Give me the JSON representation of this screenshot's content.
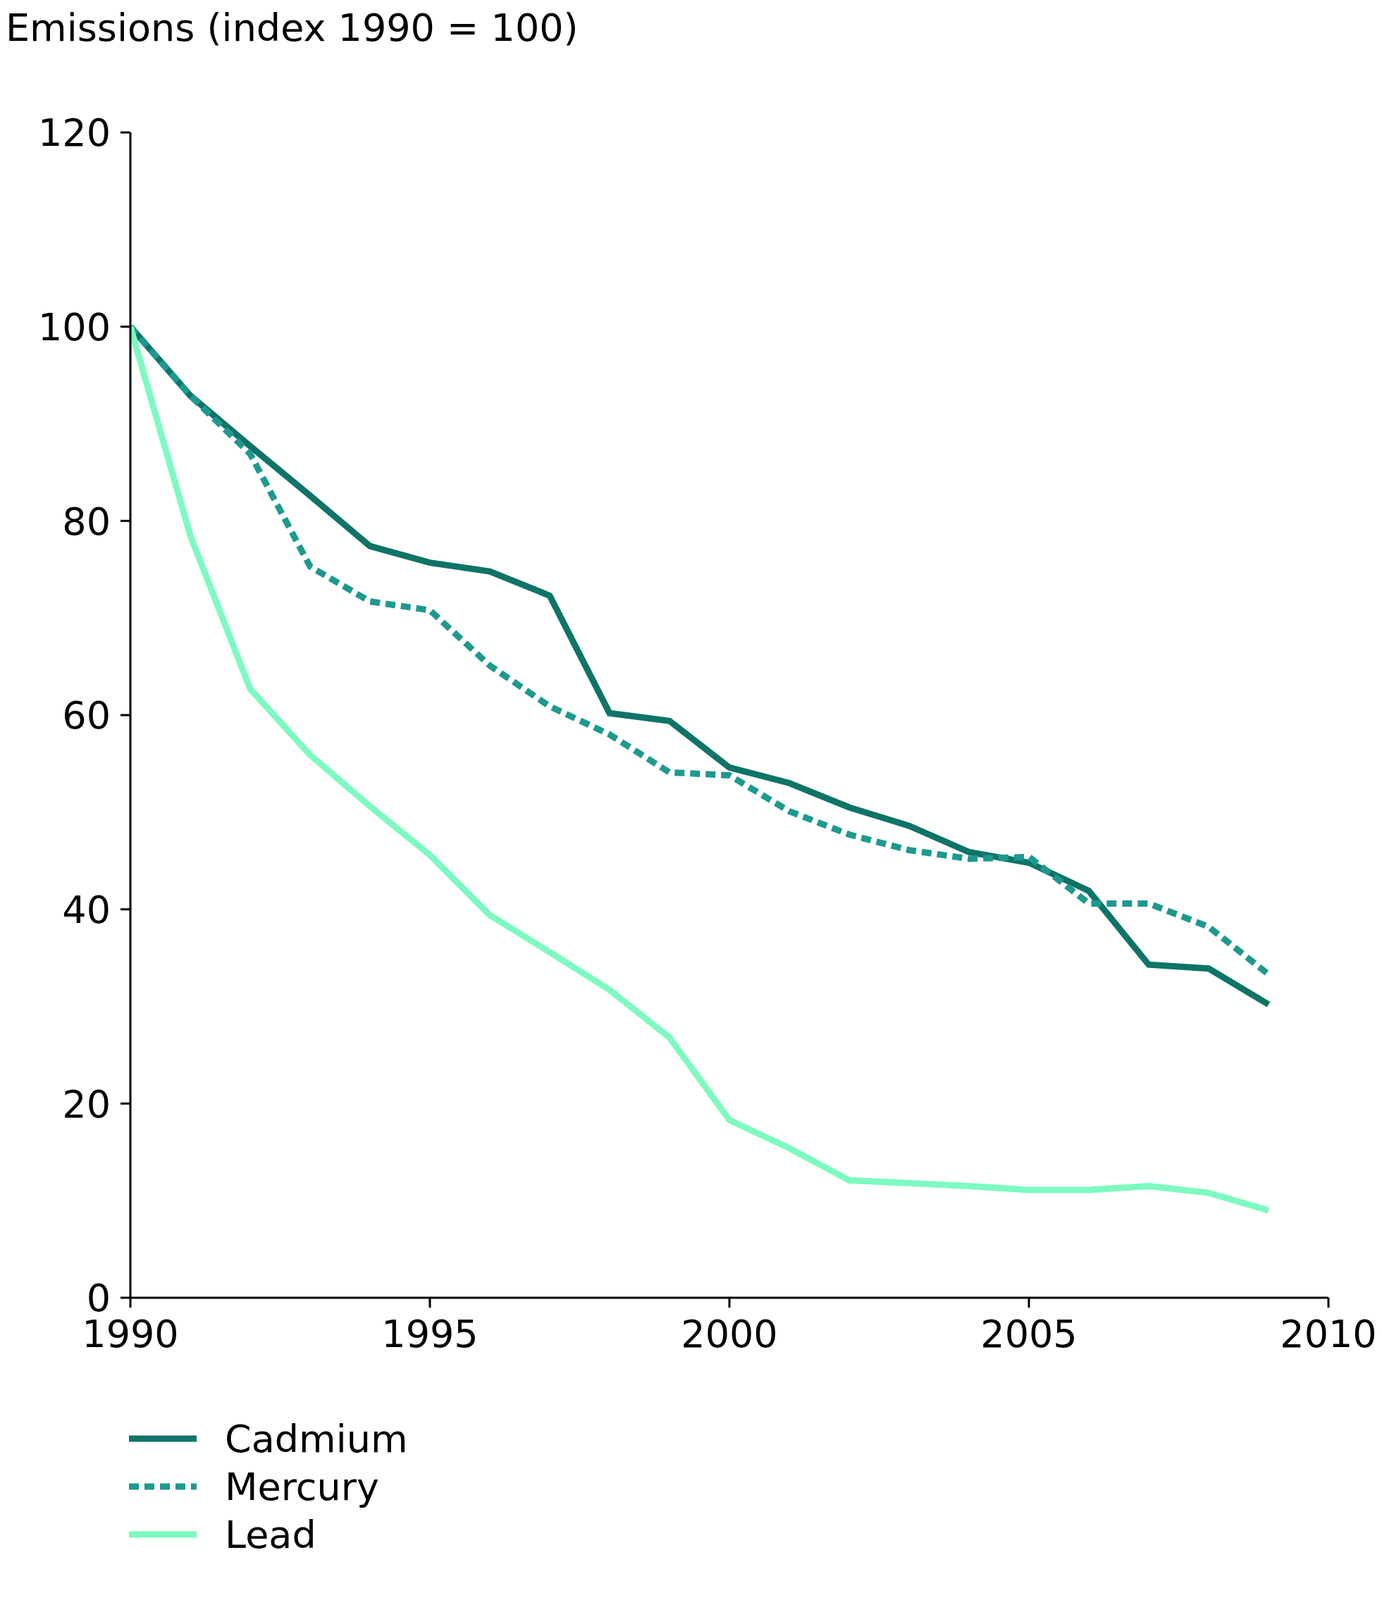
{
  "chart_data": {
    "type": "line",
    "title": "Emissions (index 1990 = 100)",
    "x": [
      1990,
      1991,
      1992,
      1993,
      1994,
      1995,
      1996,
      1997,
      1998,
      1999,
      2000,
      2001,
      2002,
      2003,
      2004,
      2005,
      2006,
      2007,
      2008,
      2009
    ],
    "xlim": [
      1990,
      2010
    ],
    "xticks": [
      1990,
      1995,
      2000,
      2005,
      2010
    ],
    "ylim": [
      0,
      120
    ],
    "yticks": [
      0,
      20,
      40,
      60,
      80,
      100,
      120
    ],
    "grid": false,
    "series": [
      {
        "name": "Cadmium",
        "color": "#0e7468",
        "line_style": "solid",
        "values": [
          100,
          92.9,
          87.7,
          82.6,
          77.4,
          75.7,
          74.8,
          72.3,
          60.2,
          59.4,
          54.6,
          53,
          50.5,
          48.6,
          45.9,
          44.8,
          41.9,
          34.3,
          33.9,
          30.2
        ]
      },
      {
        "name": "Mercury",
        "color": "#1d9a8e",
        "line_style": "dashed",
        "values": [
          100,
          92.9,
          86.9,
          75.3,
          71.7,
          70.8,
          65.1,
          60.9,
          58,
          54.1,
          53.8,
          50.1,
          47.7,
          46.1,
          45.2,
          45.4,
          40.6,
          40.6,
          38.2,
          33.3
        ]
      },
      {
        "name": "Lead",
        "color": "#7dfac0",
        "line_style": "solid",
        "values": [
          100,
          78.5,
          62.7,
          55.9,
          50.6,
          45.6,
          39.4,
          35.6,
          31.7,
          26.8,
          18.3,
          15.4,
          12.1,
          11.8,
          11.5,
          11.1,
          11.1,
          11.5,
          10.8,
          9.0
        ]
      }
    ]
  }
}
